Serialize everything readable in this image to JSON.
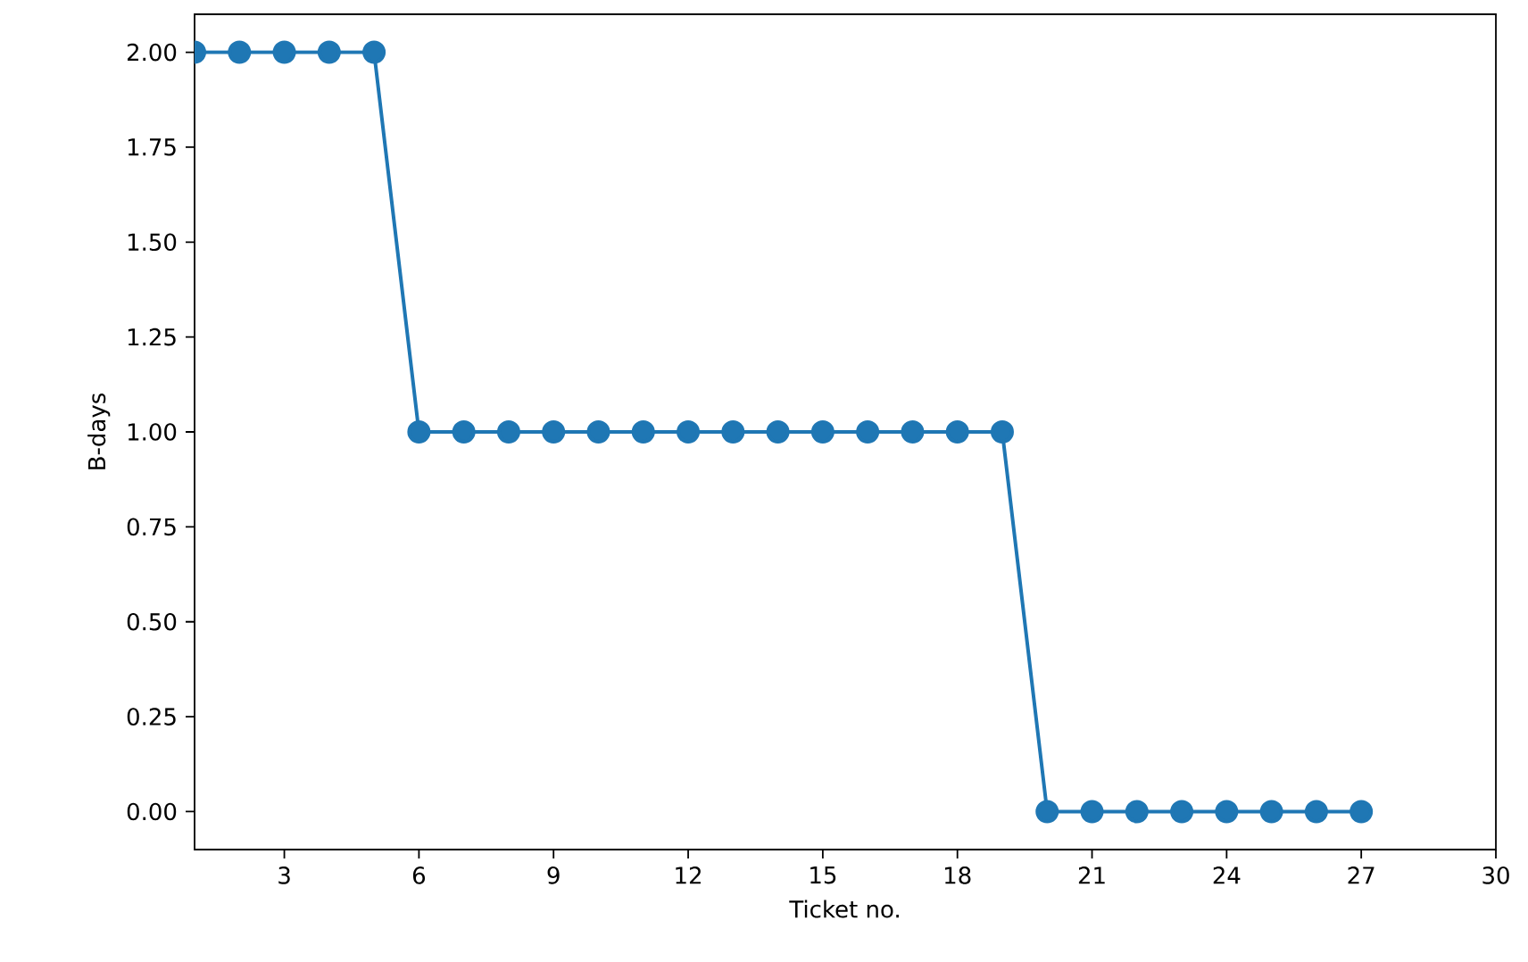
{
  "chart_data": {
    "type": "line",
    "xlabel": "Ticket no.",
    "ylabel": "B-days",
    "x": [
      1,
      2,
      3,
      4,
      5,
      6,
      7,
      8,
      9,
      10,
      11,
      12,
      13,
      14,
      15,
      16,
      17,
      18,
      19,
      20,
      21,
      22,
      23,
      24,
      25,
      26,
      27
    ],
    "values": [
      2,
      2,
      2,
      2,
      2,
      1,
      1,
      1,
      1,
      1,
      1,
      1,
      1,
      1,
      1,
      1,
      1,
      1,
      1,
      0,
      0,
      0,
      0,
      0,
      0,
      0,
      0
    ],
    "color": "#1f77b4",
    "marker": "circle",
    "line_style": "solid",
    "xlim": [
      1,
      30
    ],
    "xticks": [
      3,
      6,
      9,
      12,
      15,
      18,
      21,
      24,
      27,
      30
    ],
    "ylim": [
      -0.1,
      2.1
    ],
    "yticks": [
      {
        "value": 0,
        "label": "0.00"
      },
      {
        "value": 0.25,
        "label": "0.25"
      },
      {
        "value": 0.5,
        "label": "0.50"
      },
      {
        "value": 0.75,
        "label": "0.75"
      },
      {
        "value": 1,
        "label": "1.00"
      },
      {
        "value": 1.25,
        "label": "1.25"
      },
      {
        "value": 1.5,
        "label": "1.50"
      },
      {
        "value": 1.75,
        "label": "1.75"
      },
      {
        "value": 2,
        "label": "2.00"
      }
    ]
  }
}
